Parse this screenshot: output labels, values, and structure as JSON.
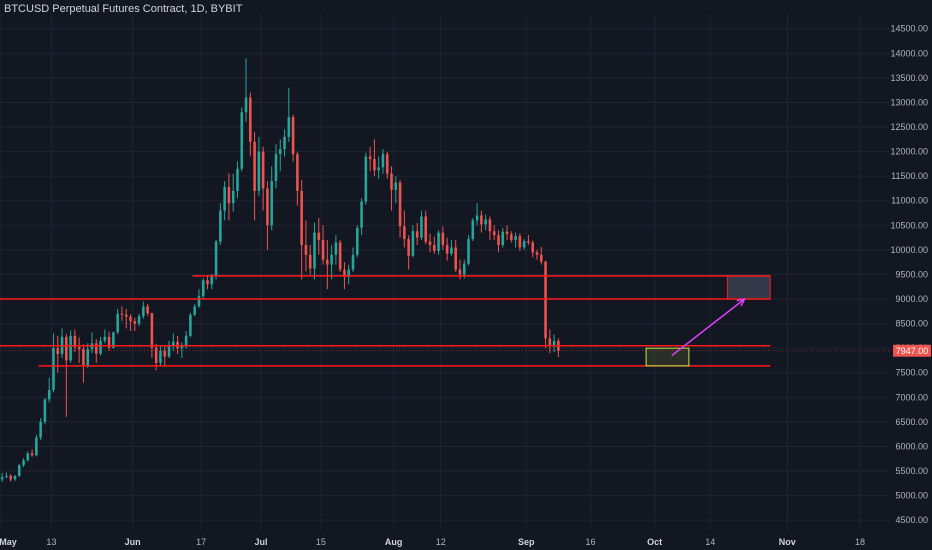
{
  "header": {
    "title": "BTCUSD Perpetual Futures Contract, 1D, BYBIT"
  },
  "colors": {
    "background": "#131722",
    "grid": "#1f2433",
    "up": "#26a69a",
    "down": "#ef5350",
    "zone_line": "#ff1a1a",
    "target_box": "#3a4050",
    "entry_box": "#c8e64a",
    "arrow": "#e040fb",
    "price_badge": "#ef5350",
    "text": "#b2b5be"
  },
  "chart_data": {
    "type": "candlestick",
    "title": "BTCUSD Perpetual Futures Contract, 1D, BYBIT",
    "x_axis": {
      "tick_labels": [
        "May",
        "13",
        "Jun",
        "17",
        "Jul",
        "15",
        "Aug",
        "12",
        "Sep",
        "16",
        "Oct",
        "14",
        "Nov",
        "18"
      ],
      "bold_labels": [
        "May",
        "Jun",
        "Jul",
        "Aug",
        "Sep",
        "Oct",
        "Nov"
      ],
      "start_date": "2019-05-01",
      "end_date": "2019-11-25"
    },
    "y_axis": {
      "tick_labels": [
        "4500.00",
        "5000.00",
        "5500.00",
        "6000.00",
        "6500.00",
        "7000.00",
        "7500.00",
        "8000.00",
        "8500.00",
        "9000.00",
        "9500.00",
        "10000.00",
        "10500.00",
        "11000.00",
        "11500.00",
        "12000.00",
        "12500.00",
        "13000.00",
        "13500.00",
        "14000.00",
        "14500.00"
      ],
      "ylim": [
        4300,
        14800
      ]
    },
    "last_price": "7947.00",
    "candles": {
      "start_date": "2019-05-01",
      "ohlc": [
        [
          5330,
          5460,
          5280,
          5380
        ],
        [
          5380,
          5470,
          5350,
          5400
        ],
        [
          5400,
          5440,
          5280,
          5330
        ],
        [
          5330,
          5420,
          5300,
          5400
        ],
        [
          5400,
          5640,
          5380,
          5620
        ],
        [
          5620,
          5760,
          5580,
          5720
        ],
        [
          5720,
          5900,
          5690,
          5860
        ],
        [
          5860,
          5940,
          5790,
          5820
        ],
        [
          5820,
          6240,
          5800,
          6180
        ],
        [
          6180,
          6580,
          6130,
          6500
        ],
        [
          6500,
          6980,
          6450,
          6960
        ],
        [
          6960,
          7400,
          6900,
          7150
        ],
        [
          7150,
          8300,
          7100,
          8000
        ],
        [
          8000,
          8250,
          7500,
          7880
        ],
        [
          7880,
          8400,
          7800,
          8230
        ],
        [
          8230,
          8290,
          6600,
          7750
        ],
        [
          7750,
          8360,
          7700,
          8250
        ],
        [
          8250,
          8380,
          7920,
          8020
        ],
        [
          8020,
          8220,
          7700,
          7980
        ],
        [
          7980,
          8080,
          7300,
          7650
        ],
        [
          7650,
          8100,
          7600,
          7980
        ],
        [
          7980,
          8320,
          7900,
          8100
        ],
        [
          8100,
          8180,
          7700,
          7890
        ],
        [
          7890,
          8230,
          7850,
          8150
        ],
        [
          8150,
          8380,
          8100,
          8230
        ],
        [
          8230,
          8340,
          7950,
          8010
        ],
        [
          8010,
          8340,
          7990,
          8320
        ],
        [
          8320,
          8800,
          8290,
          8700
        ],
        [
          8700,
          8850,
          8550,
          8680
        ],
        [
          8680,
          8800,
          8400,
          8640
        ],
        [
          8640,
          8690,
          8350,
          8550
        ],
        [
          8550,
          8620,
          8350,
          8500
        ],
        [
          8500,
          8700,
          8450,
          8650
        ],
        [
          8650,
          8950,
          8600,
          8850
        ],
        [
          8850,
          8900,
          8660,
          8710
        ],
        [
          8710,
          8720,
          7800,
          8010
        ],
        [
          8010,
          8090,
          7550,
          7700
        ],
        [
          7700,
          8060,
          7650,
          7950
        ],
        [
          7950,
          8050,
          7630,
          7830
        ],
        [
          7830,
          8150,
          7800,
          8050
        ],
        [
          8050,
          8300,
          7950,
          8130
        ],
        [
          8130,
          8250,
          7880,
          8000
        ],
        [
          8000,
          8120,
          7800,
          8040
        ],
        [
          8040,
          8350,
          7990,
          8250
        ],
        [
          8250,
          8720,
          8220,
          8680
        ],
        [
          8680,
          8900,
          8650,
          8850
        ],
        [
          8850,
          9200,
          8820,
          9060
        ],
        [
          9060,
          9430,
          8990,
          9380
        ],
        [
          9380,
          9480,
          9200,
          9300
        ],
        [
          9300,
          9510,
          9200,
          9480
        ],
        [
          9480,
          10200,
          9400,
          10170
        ],
        [
          10170,
          10950,
          10100,
          10800
        ],
        [
          10800,
          11400,
          10600,
          11280
        ],
        [
          11280,
          11560,
          10600,
          10950
        ],
        [
          10950,
          11550,
          10780,
          11200
        ],
        [
          11200,
          11800,
          11050,
          11650
        ],
        [
          11650,
          12900,
          11600,
          12800
        ],
        [
          12800,
          13900,
          12600,
          13100
        ],
        [
          13100,
          13200,
          11900,
          12200
        ],
        [
          12200,
          12400,
          10600,
          11200
        ],
        [
          11200,
          12300,
          11100,
          12000
        ],
        [
          12000,
          12100,
          10800,
          11250
        ],
        [
          11250,
          11400,
          10000,
          10500
        ],
        [
          10500,
          11700,
          10400,
          11400
        ],
        [
          11400,
          12150,
          11250,
          11950
        ],
        [
          11950,
          12250,
          11600,
          12050
        ],
        [
          12050,
          12450,
          11900,
          12300
        ],
        [
          12300,
          13300,
          12200,
          12700
        ],
        [
          12700,
          12750,
          11800,
          11950
        ],
        [
          11950,
          12000,
          10900,
          11200
        ],
        [
          11200,
          11420,
          9400,
          10100
        ],
        [
          10100,
          10600,
          9560,
          9900
        ],
        [
          9900,
          10100,
          9500,
          9620
        ],
        [
          9620,
          10550,
          9400,
          10350
        ],
        [
          10350,
          10650,
          9900,
          10200
        ],
        [
          10200,
          10500,
          9700,
          9800
        ],
        [
          9800,
          10200,
          9200,
          9700
        ],
        [
          9700,
          10100,
          9400,
          9900
        ],
        [
          9900,
          10300,
          9700,
          10150
        ],
        [
          10150,
          10200,
          9550,
          9600
        ],
        [
          9600,
          9750,
          9200,
          9450
        ],
        [
          9450,
          9700,
          9300,
          9600
        ],
        [
          9600,
          10050,
          9550,
          9900
        ],
        [
          9900,
          10500,
          9850,
          10450
        ],
        [
          10450,
          11050,
          10300,
          10980
        ],
        [
          10980,
          11980,
          10920,
          11900
        ],
        [
          11900,
          12100,
          11600,
          11850
        ],
        [
          11850,
          12250,
          11500,
          11620
        ],
        [
          11620,
          11900,
          11450,
          11680
        ],
        [
          11680,
          12050,
          11550,
          11950
        ],
        [
          11950,
          12000,
          11450,
          11550
        ],
        [
          11550,
          11700,
          10800,
          11220
        ],
        [
          11220,
          11500,
          10950,
          11370
        ],
        [
          11370,
          11420,
          10250,
          10480
        ],
        [
          10480,
          10800,
          10050,
          10220
        ],
        [
          10220,
          10300,
          9600,
          9880
        ],
        [
          9880,
          10500,
          9850,
          10380
        ],
        [
          10380,
          10550,
          10100,
          10250
        ],
        [
          10250,
          10800,
          10200,
          10680
        ],
        [
          10680,
          10800,
          10120,
          10170
        ],
        [
          10170,
          10330,
          9950,
          10100
        ],
        [
          10100,
          10270,
          9920,
          9980
        ],
        [
          9980,
          10400,
          9900,
          10350
        ],
        [
          10350,
          10480,
          10000,
          10100
        ],
        [
          10100,
          10250,
          9780,
          9920
        ],
        [
          9920,
          10200,
          9880,
          10050
        ],
        [
          10050,
          10200,
          9550,
          9600
        ],
        [
          9600,
          9800,
          9400,
          9500
        ],
        [
          9500,
          9800,
          9420,
          9720
        ],
        [
          9720,
          10300,
          9680,
          10220
        ],
        [
          10220,
          10650,
          10180,
          10600
        ],
        [
          10600,
          10950,
          10500,
          10700
        ],
        [
          10700,
          10800,
          10350,
          10520
        ],
        [
          10520,
          10720,
          10400,
          10620
        ],
        [
          10620,
          10680,
          10200,
          10380
        ],
        [
          10380,
          10500,
          10200,
          10300
        ],
        [
          10300,
          10400,
          9950,
          10100
        ],
        [
          10100,
          10450,
          10050,
          10370
        ],
        [
          10370,
          10500,
          10200,
          10320
        ],
        [
          10320,
          10380,
          10150,
          10200
        ],
        [
          10200,
          10350,
          10050,
          10280
        ],
        [
          10280,
          10340,
          9980,
          10050
        ],
        [
          10050,
          10220,
          10000,
          10180
        ],
        [
          10180,
          10300,
          10100,
          10150
        ],
        [
          10150,
          10190,
          9850,
          9950
        ],
        [
          9950,
          10000,
          9800,
          9900
        ],
        [
          9900,
          10060,
          9700,
          9760
        ],
        [
          9760,
          9780,
          8000,
          8200
        ],
        [
          8200,
          8380,
          7900,
          8050
        ],
        [
          8050,
          8280,
          7920,
          8150
        ],
        [
          8150,
          8200,
          7820,
          7947
        ]
      ]
    },
    "zones": [
      {
        "y1": 9470,
        "y2": 9470,
        "x_start": "2019-06-15",
        "x_end": "2019-10-28"
      },
      {
        "y1": 9000,
        "y2": 9000,
        "x_start": "2019-05-01",
        "x_end": "2019-10-28"
      },
      {
        "y1": 8050,
        "y2": 8050,
        "x_start": "2019-05-01",
        "x_end": "2019-10-28"
      },
      {
        "y1": 7640,
        "y2": 7640,
        "x_start": "2019-05-10",
        "x_end": "2019-10-28"
      }
    ],
    "target_box": {
      "x_start": "2019-10-18",
      "x_end": "2019-10-28",
      "y_low": 9000,
      "y_high": 9470
    },
    "entry_box": {
      "x_start": "2019-09-29",
      "x_end": "2019-10-09",
      "y_low": 7640,
      "y_high": 8000
    },
    "arrow": {
      "from_date": "2019-10-05",
      "from_price": 7850,
      "to_date": "2019-10-22",
      "to_price": 9000
    }
  }
}
